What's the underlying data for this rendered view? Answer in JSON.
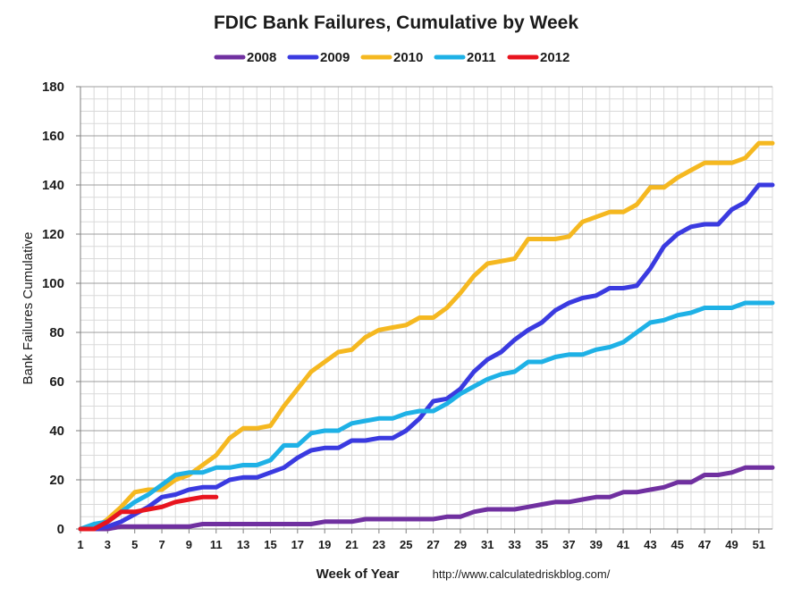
{
  "chart_data": {
    "type": "line",
    "title": "FDIC Bank Failures, Cumulative by Week",
    "xlabel": "Week of Year",
    "ylabel": "Bank Failures Cumulative",
    "source": "http://www.calculatedriskblog.com/",
    "xlim": [
      1,
      52
    ],
    "ylim": [
      0,
      180
    ],
    "x_ticks": [
      "1",
      "3",
      "5",
      "7",
      "9",
      "11",
      "13",
      "15",
      "17",
      "19",
      "21",
      "23",
      "25",
      "27",
      "29",
      "31",
      "33",
      "35",
      "37",
      "39",
      "41",
      "43",
      "45",
      "47",
      "49",
      "51"
    ],
    "y_ticks": [
      "0",
      "20",
      "40",
      "60",
      "80",
      "100",
      "120",
      "140",
      "160",
      "180"
    ],
    "legend_position": "top-center",
    "series": [
      {
        "name": "2008",
        "color": "#7030a0",
        "x": [
          1,
          2,
          3,
          4,
          5,
          6,
          7,
          8,
          9,
          10,
          11,
          12,
          13,
          14,
          15,
          16,
          17,
          18,
          19,
          20,
          21,
          22,
          23,
          24,
          25,
          26,
          27,
          28,
          29,
          30,
          31,
          32,
          33,
          34,
          35,
          36,
          37,
          38,
          39,
          40,
          41,
          42,
          43,
          44,
          45,
          46,
          47,
          48,
          49,
          50,
          51,
          52
        ],
        "values": [
          0,
          0,
          0,
          1,
          1,
          1,
          1,
          1,
          1,
          2,
          2,
          2,
          2,
          2,
          2,
          2,
          2,
          2,
          3,
          3,
          3,
          4,
          4,
          4,
          4,
          4,
          4,
          5,
          5,
          7,
          8,
          8,
          8,
          9,
          10,
          11,
          11,
          12,
          13,
          13,
          15,
          15,
          16,
          17,
          19,
          19,
          22,
          22,
          23,
          25,
          25,
          25
        ]
      },
      {
        "name": "2009",
        "color": "#3a3ae0",
        "x": [
          1,
          2,
          3,
          4,
          5,
          6,
          7,
          8,
          9,
          10,
          11,
          12,
          13,
          14,
          15,
          16,
          17,
          18,
          19,
          20,
          21,
          22,
          23,
          24,
          25,
          26,
          27,
          28,
          29,
          30,
          31,
          32,
          33,
          34,
          35,
          36,
          37,
          38,
          39,
          40,
          41,
          42,
          43,
          44,
          45,
          46,
          47,
          48,
          49,
          50,
          51,
          52
        ],
        "values": [
          0,
          0,
          1,
          3,
          6,
          9,
          13,
          14,
          16,
          17,
          17,
          20,
          21,
          21,
          23,
          25,
          29,
          32,
          33,
          33,
          36,
          36,
          37,
          37,
          40,
          45,
          52,
          53,
          57,
          64,
          69,
          72,
          77,
          81,
          84,
          89,
          92,
          94,
          95,
          98,
          98,
          99,
          106,
          115,
          120,
          123,
          124,
          124,
          130,
          133,
          140,
          140
        ]
      },
      {
        "name": "2010",
        "color": "#f5b820",
        "x": [
          1,
          2,
          3,
          4,
          5,
          6,
          7,
          8,
          9,
          10,
          11,
          12,
          13,
          14,
          15,
          16,
          17,
          18,
          19,
          20,
          21,
          22,
          23,
          24,
          25,
          26,
          27,
          28,
          29,
          30,
          31,
          32,
          33,
          34,
          35,
          36,
          37,
          38,
          39,
          40,
          41,
          42,
          43,
          44,
          45,
          46,
          47,
          48,
          49,
          50,
          51,
          52
        ],
        "values": [
          0,
          0,
          4,
          9,
          15,
          16,
          16,
          20,
          22,
          26,
          30,
          37,
          41,
          41,
          42,
          50,
          57,
          64,
          68,
          72,
          73,
          78,
          81,
          82,
          83,
          86,
          86,
          90,
          96,
          103,
          108,
          109,
          110,
          118,
          118,
          118,
          119,
          125,
          127,
          129,
          129,
          132,
          139,
          139,
          143,
          146,
          149,
          149,
          149,
          151,
          157,
          157
        ]
      },
      {
        "name": "2011",
        "color": "#1eb1e6",
        "x": [
          1,
          2,
          3,
          4,
          5,
          6,
          7,
          8,
          9,
          10,
          11,
          12,
          13,
          14,
          15,
          16,
          17,
          18,
          19,
          20,
          21,
          22,
          23,
          24,
          25,
          26,
          27,
          28,
          29,
          30,
          31,
          32,
          33,
          34,
          35,
          36,
          37,
          38,
          39,
          40,
          41,
          42,
          43,
          44,
          45,
          46,
          47,
          48,
          49,
          50,
          51,
          52
        ],
        "values": [
          0,
          2,
          3,
          7,
          11,
          14,
          18,
          22,
          23,
          23,
          25,
          25,
          26,
          26,
          28,
          34,
          34,
          39,
          40,
          40,
          43,
          44,
          45,
          45,
          47,
          48,
          48,
          51,
          55,
          58,
          61,
          63,
          64,
          68,
          68,
          70,
          71,
          71,
          73,
          74,
          76,
          80,
          84,
          85,
          87,
          88,
          90,
          90,
          90,
          92,
          92,
          92
        ]
      },
      {
        "name": "2012",
        "color": "#e8141e",
        "x": [
          1,
          2,
          3,
          4,
          5,
          6,
          7,
          8,
          9,
          10,
          11
        ],
        "values": [
          0,
          0,
          3,
          7,
          7,
          8,
          9,
          11,
          12,
          13,
          13
        ]
      }
    ]
  }
}
